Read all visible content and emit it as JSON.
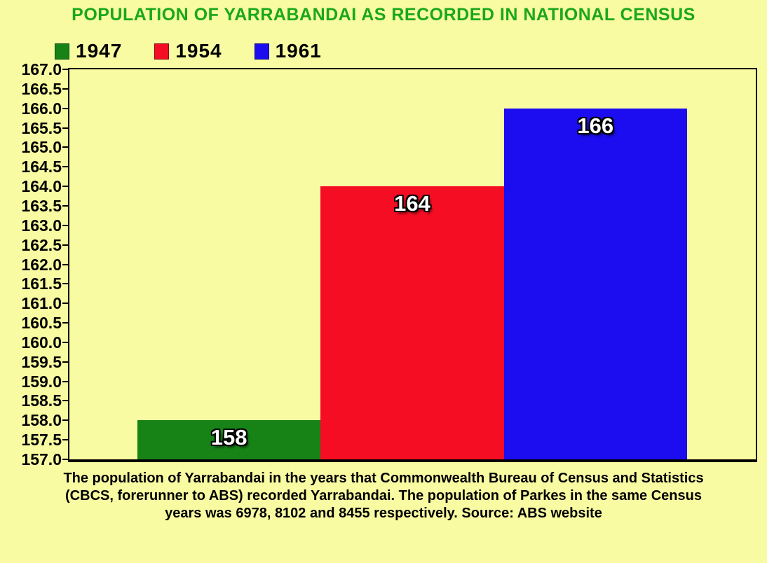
{
  "title": "POPULATION OF YARRABANDAI AS RECORDED IN NATIONAL CENSUS",
  "title_color": "#1AA81A",
  "background_color": "#F9FBA2",
  "legend": {
    "items": [
      {
        "label": "1947",
        "color": "#178317"
      },
      {
        "label": "1954",
        "color": "#F50D23"
      },
      {
        "label": "1961",
        "color": "#1B0DF0"
      }
    ]
  },
  "caption": {
    "lines": [
      "The population of Yarrabandai in the years that Commonwealth Bureau of Census and Statistics",
      "(CBCS, forerunner to ABS) recorded Yarrabandai. The population of Parkes in the same Census",
      "years was 6978, 8102 and 8455 respectively. Source: ABS website"
    ]
  },
  "chart_data": {
    "type": "bar",
    "title": "POPULATION OF YARRABANDAI AS RECORDED IN NATIONAL CENSUS",
    "categories": [
      "1947",
      "1954",
      "1961"
    ],
    "values": [
      158,
      164,
      166
    ],
    "bar_labels": [
      "158",
      "164",
      "166"
    ],
    "colors": [
      "#178317",
      "#F50D23",
      "#1B0DF0"
    ],
    "xlabel": "",
    "ylabel": "",
    "ylim": [
      157,
      167
    ],
    "ytick_step": 0.5,
    "ytick_labels": [
      "167.0",
      "166.5",
      "166.0",
      "165.5",
      "165.0",
      "164.5",
      "164.0",
      "163.5",
      "163.0",
      "162.5",
      "162.0",
      "161.5",
      "161.0",
      "160.5",
      "160.0",
      "159.5",
      "159.0",
      "158.5",
      "158.0",
      "157.5",
      "157.0"
    ],
    "grid": false,
    "legend_position": "top-left",
    "bar_label_style": "white-with-black-outline-inside-top"
  }
}
